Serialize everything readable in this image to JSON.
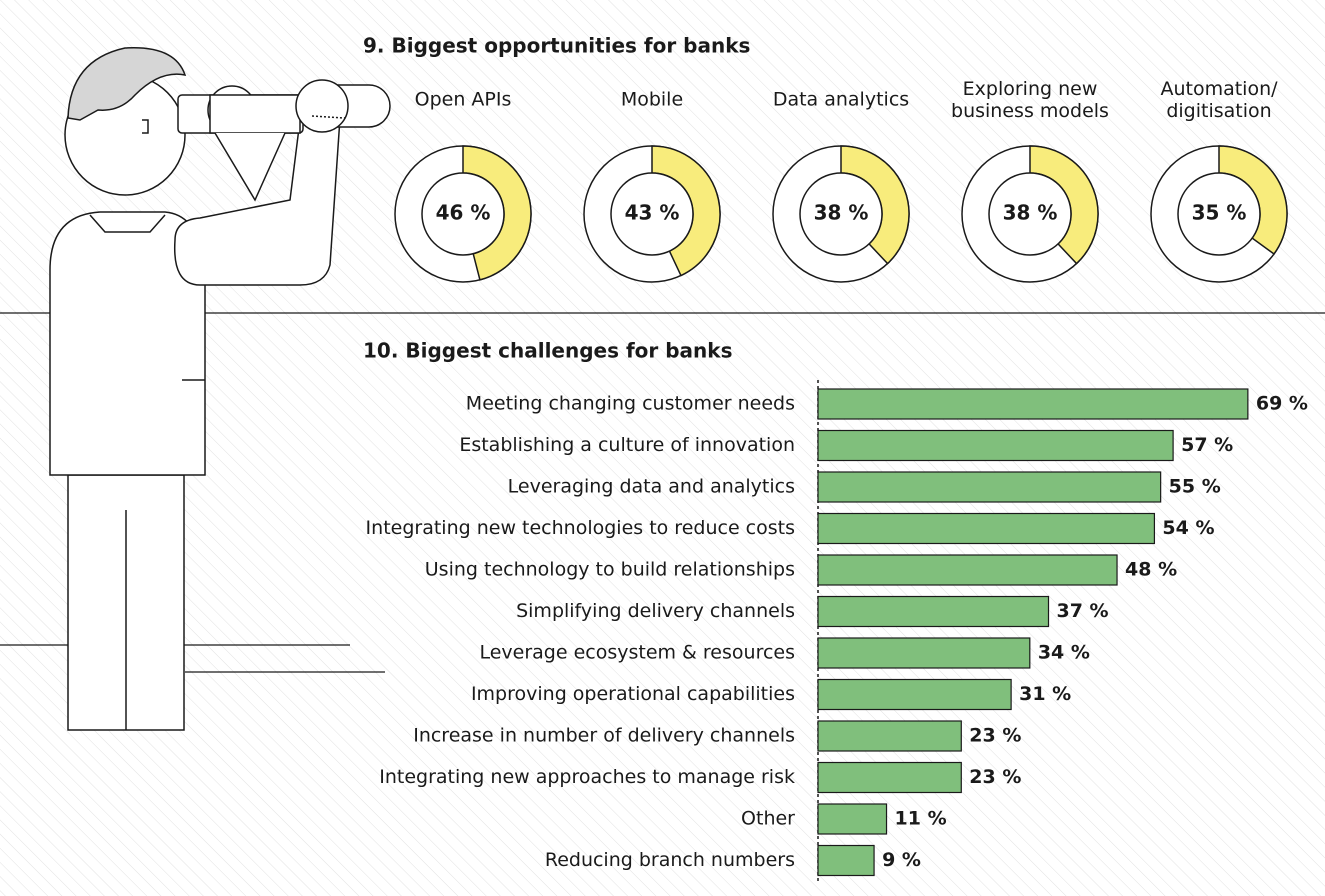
{
  "chart_data": [
    {
      "type": "donut",
      "title": "9. Biggest opportunities for banks",
      "categories": [
        "Open APIs",
        "Mobile",
        "Data analytics",
        "Exploring new\nbusiness models",
        "Automation/\ndigitisation"
      ],
      "values": [
        46,
        43,
        38,
        38,
        35
      ],
      "value_labels": [
        "46 %",
        "43 %",
        "38 %",
        "38 %",
        "35 %"
      ],
      "color": "#f8ec7c"
    },
    {
      "type": "hbar",
      "title": "10. Biggest challenges for banks",
      "categories": [
        "Meeting changing customer needs",
        "Establishing a culture of innovation",
        "Leveraging data and analytics",
        "Integrating new technologies to reduce costs",
        "Using technology to build relationships",
        "Simplifying delivery channels",
        "Leverage ecosystem & resources",
        "Improving operational capabilities",
        "Increase in number of delivery channels",
        "Integrating new approaches to manage risk",
        "Other",
        "Reducing branch numbers"
      ],
      "values": [
        69,
        57,
        55,
        54,
        48,
        37,
        34,
        31,
        23,
        23,
        11,
        9
      ],
      "value_labels": [
        "69 %",
        "57 %",
        "55 %",
        "54 %",
        "48 %",
        "37 %",
        "34 %",
        "31 %",
        "23 %",
        "23 %",
        "11 %",
        "9 %"
      ],
      "color": "#80bf7c"
    }
  ]
}
